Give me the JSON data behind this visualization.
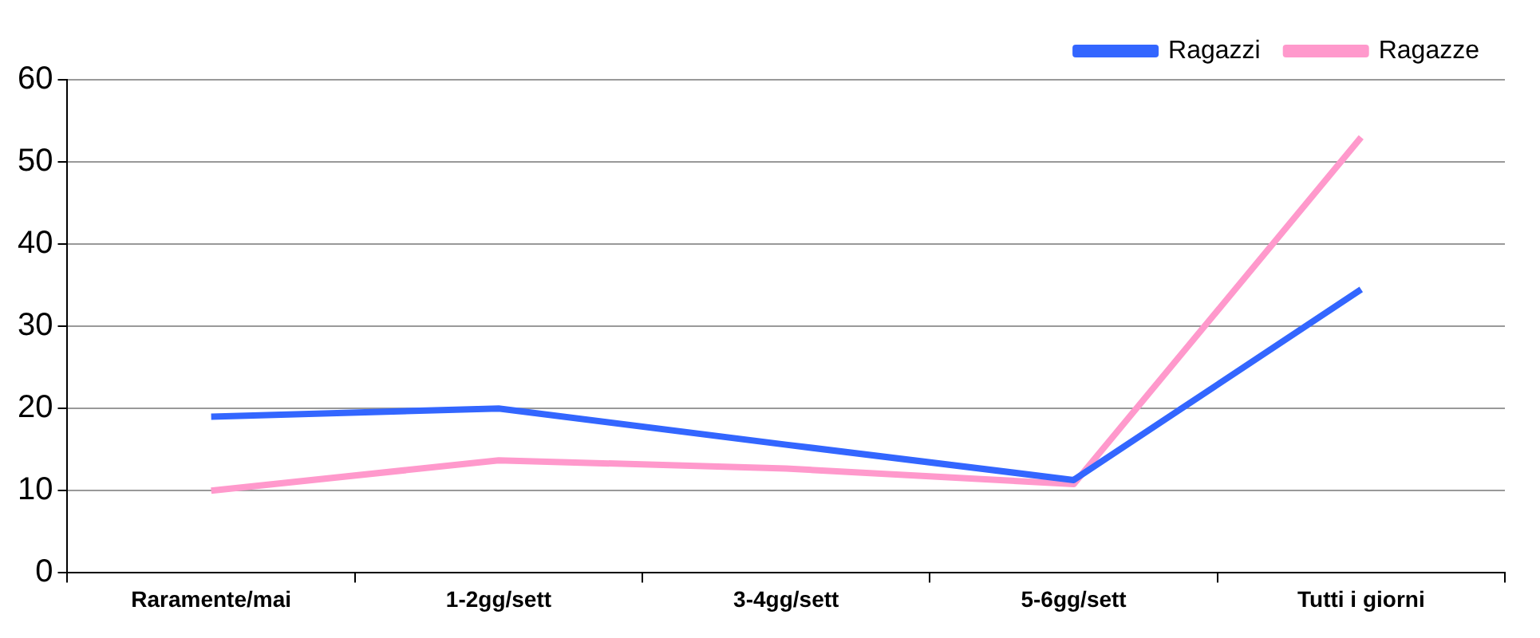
{
  "chart_data": {
    "type": "line",
    "categories": [
      "Raramente/mai",
      "1-2gg/sett",
      "3-4gg/sett",
      "5-6gg/sett",
      "Tutti i giorni"
    ],
    "series": [
      {
        "name": "Ragazzi",
        "color": "#3366ff",
        "values": [
          19,
          20,
          15.6,
          11.3,
          34.5
        ]
      },
      {
        "name": "Ragazze",
        "color": "#ff99cc",
        "values": [
          10,
          13.7,
          12.7,
          10.8,
          53
        ]
      }
    ],
    "ylim": [
      0,
      60
    ],
    "yticks": [
      0,
      10,
      20,
      30,
      40,
      50,
      60
    ],
    "grid": "y",
    "legend": "top right",
    "marker": "none",
    "line_style": "solid"
  }
}
